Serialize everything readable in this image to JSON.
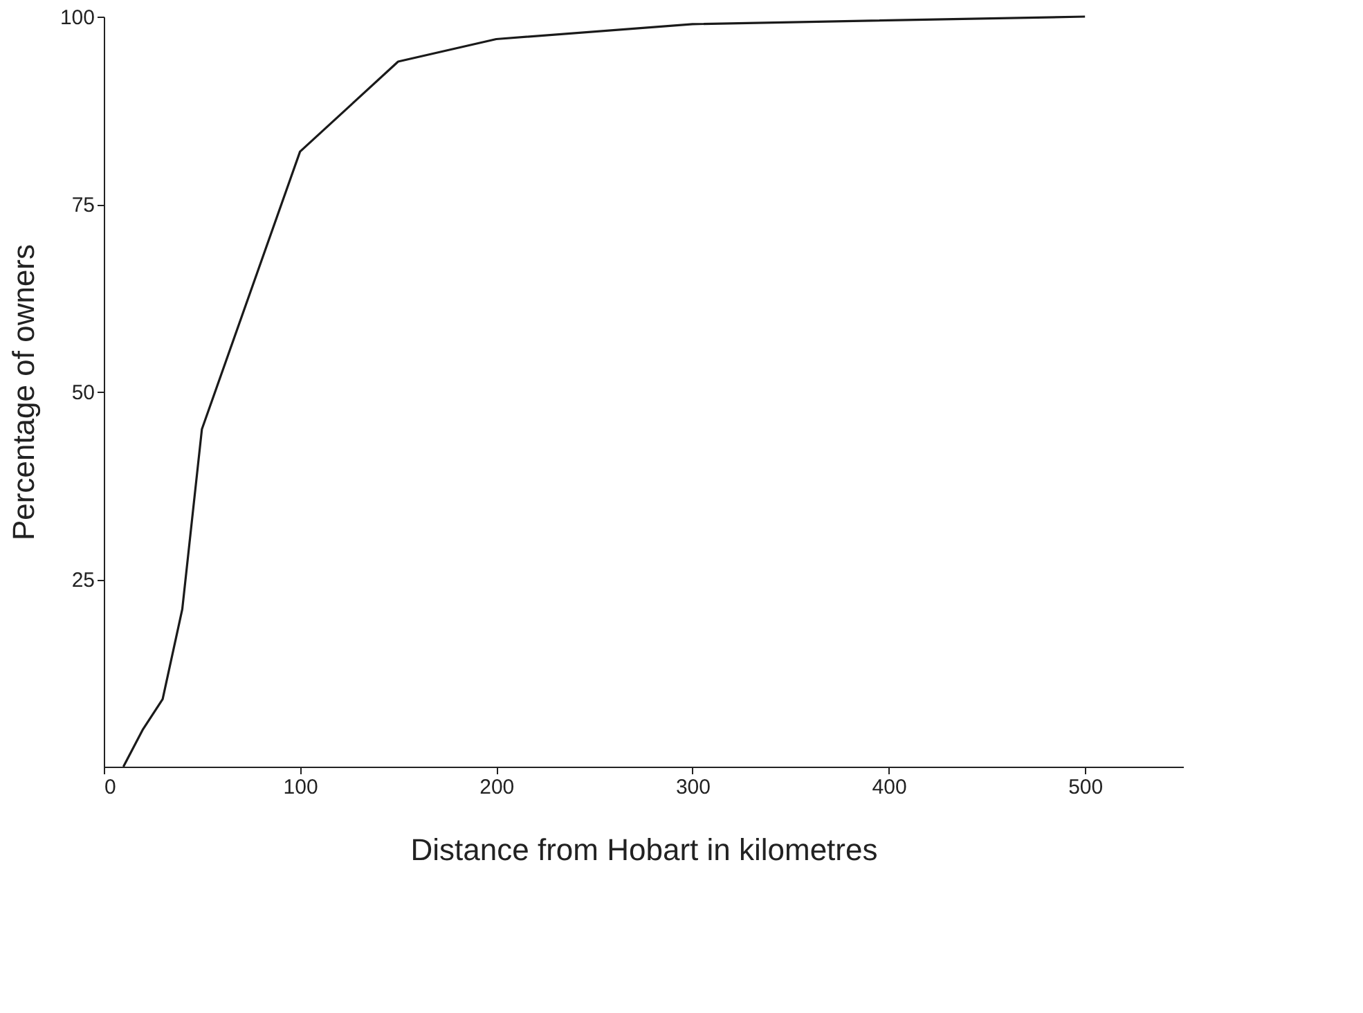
{
  "chart_data": {
    "type": "line",
    "xlabel": "Distance  from Hobart in kilometres",
    "ylabel": "Percentage of owners",
    "x": [
      10,
      20,
      30,
      40,
      50,
      100,
      150,
      200,
      300,
      500
    ],
    "series": [
      {
        "color": "#1a1a1a",
        "values": [
          0,
          5,
          9,
          21,
          45,
          82,
          94,
          97,
          99,
          100
        ]
      }
    ],
    "xlim": [
      0,
      550
    ],
    "xticks": [
      0,
      100,
      200,
      300,
      400,
      500
    ],
    "ylim": [
      0,
      100
    ],
    "yticks": [
      25,
      50,
      75,
      100
    ],
    "grid": false,
    "marker": "none",
    "line_style": "solid"
  }
}
